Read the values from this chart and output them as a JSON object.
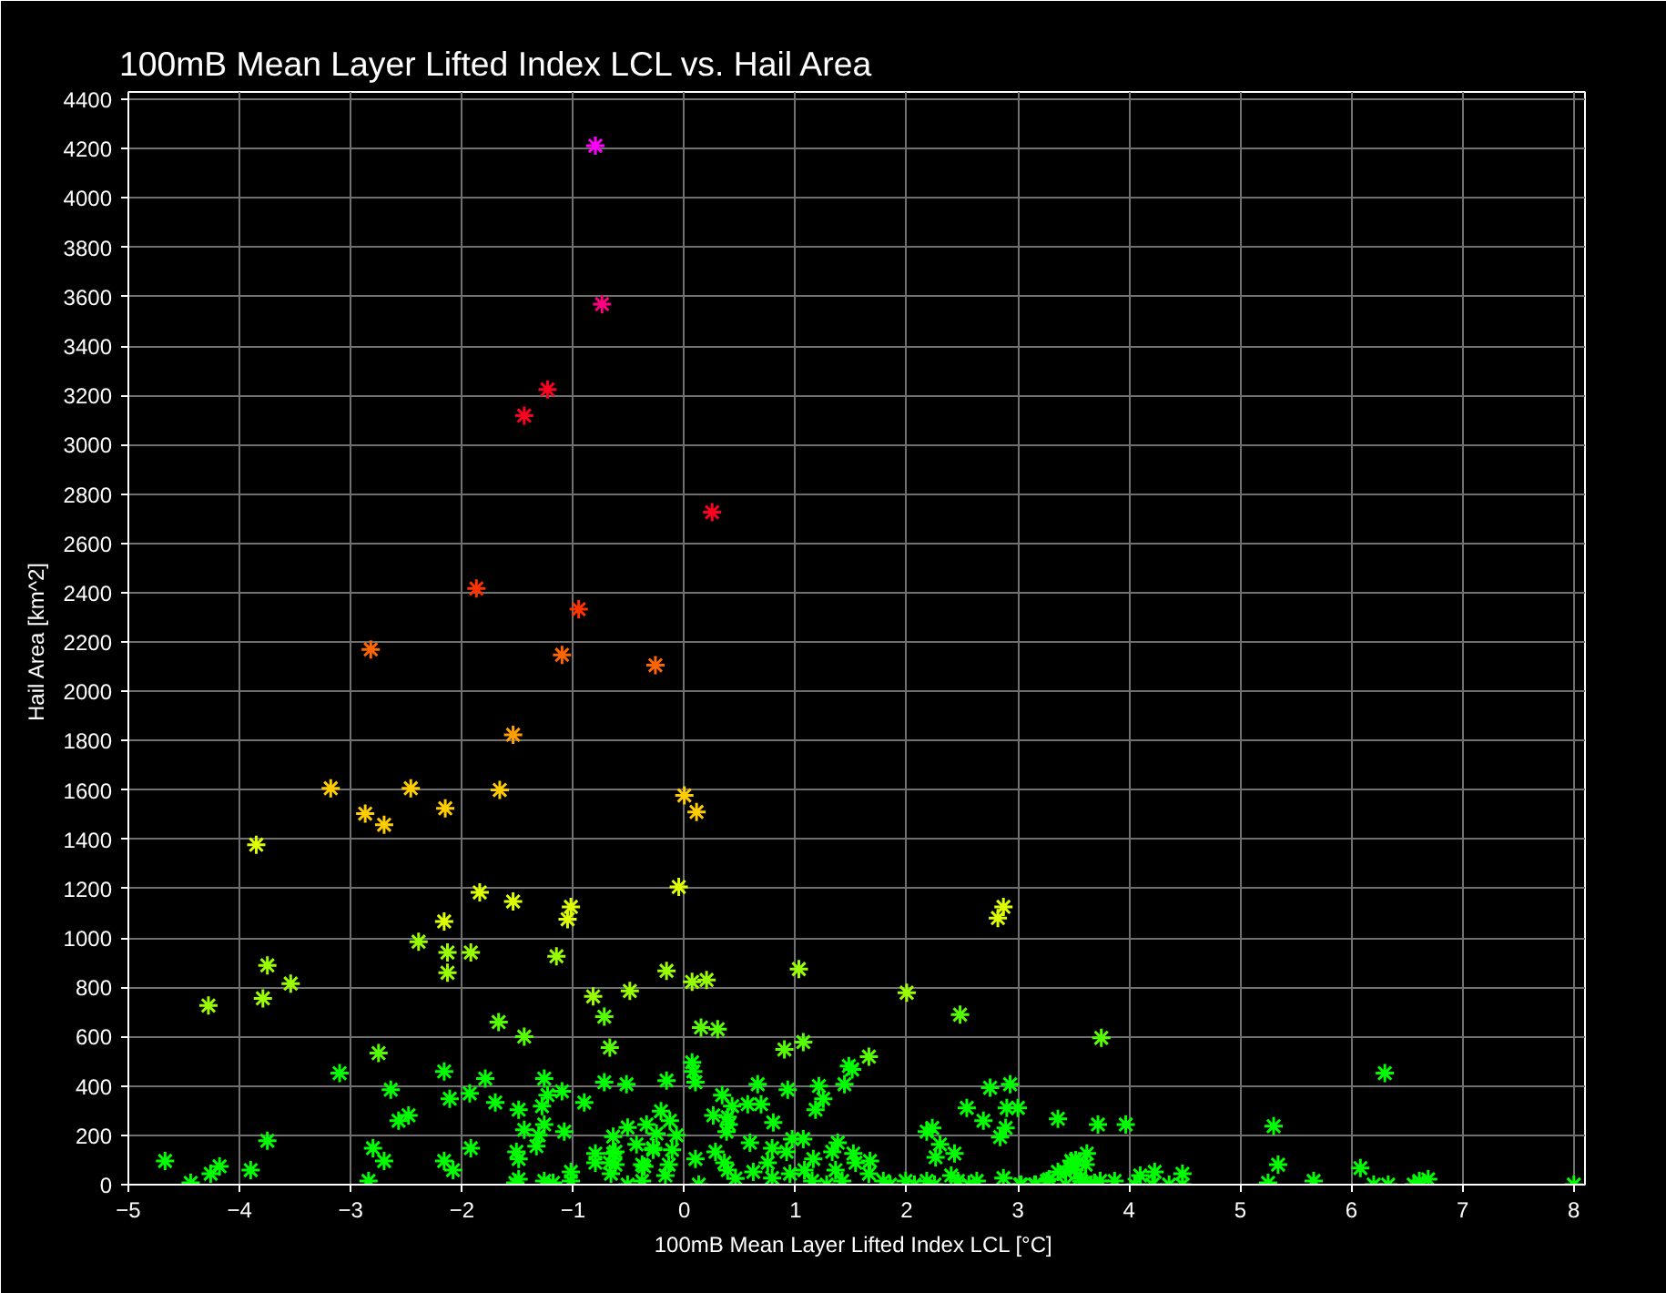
{
  "chart_data": {
    "type": "scatter",
    "title": "100mB Mean Layer Lifted Index LCL vs. Hail Area",
    "xlabel": "100mB Mean Layer Lifted Index LCL  [°C]",
    "ylabel": "Hail Area  [km^2]",
    "xlim": [
      -5,
      8.1
    ],
    "ylim": [
      0,
      4430
    ],
    "xticks": [
      -5,
      -4,
      -3,
      -2,
      -1,
      0,
      1,
      2,
      3,
      4,
      5,
      6,
      7,
      8
    ],
    "yticks": [
      0,
      200,
      400,
      600,
      800,
      1000,
      1200,
      1400,
      1600,
      1800,
      2000,
      2200,
      2400,
      2600,
      2800,
      3000,
      3200,
      3400,
      3600,
      3800,
      4000,
      4200,
      4400
    ],
    "grid": true,
    "marker": "cross",
    "series": [
      {
        "color": "#ff00ff",
        "x": [
          -0.8
        ],
        "values": [
          4212
        ]
      },
      {
        "color": "#ff0080",
        "x": [
          -0.74
        ],
        "values": [
          3570
        ]
      },
      {
        "color": "#ff0020",
        "x": [
          -1.23,
          -1.44,
          0.25
        ],
        "values": [
          3224,
          3118,
          2726
        ]
      },
      {
        "color": "#ff3300",
        "x": [
          -1.87,
          -0.95
        ],
        "values": [
          2417,
          2333
        ]
      },
      {
        "color": "#ff6600",
        "x": [
          -2.82,
          -1.1,
          -0.26
        ],
        "values": [
          2170,
          2148,
          2106
        ]
      },
      {
        "color": "#ffa000",
        "x": [
          -1.54
        ],
        "values": [
          1824
        ]
      },
      {
        "color": "#ffcc00",
        "x": [
          -3.18,
          -2.46,
          -1.66,
          -2.87,
          -2.7,
          -2.15,
          0.0,
          0.11
        ],
        "values": [
          1607,
          1607,
          1600,
          1504,
          1459,
          1526,
          1578,
          1511
        ]
      },
      {
        "color": "#ddff00",
        "x": [
          -3.85,
          -1.84,
          -1.54,
          -1.02,
          -1.05,
          -2.16,
          -0.05,
          2.87,
          2.82
        ],
        "values": [
          1378,
          1185,
          1148,
          1126,
          1076,
          1067,
          1207,
          1126,
          1081
        ]
      },
      {
        "color": "#99ff00",
        "x": [
          -2.39,
          -2.13,
          -1.92,
          -1.15,
          -2.13,
          -3.75,
          -3.54,
          -3.79,
          -4.28,
          -0.82,
          -0.49,
          -0.16,
          1.03,
          0.07,
          0.2,
          2.0
        ],
        "values": [
          985,
          941,
          941,
          926,
          859,
          889,
          815,
          755,
          726,
          763,
          785,
          867,
          874,
          822,
          830,
          778
        ]
      },
      {
        "color": "#55ff00",
        "x": [
          -1.67,
          -1.44,
          -0.72,
          -0.67,
          -2.75,
          2.48,
          0.15,
          0.3,
          0.9,
          1.07,
          1.66,
          3.75
        ],
        "values": [
          659,
          600,
          681,
          556,
          533,
          689,
          637,
          630,
          548,
          578,
          519,
          595
        ]
      },
      {
        "color": "#00ff00",
        "x": [
          -3.1,
          -2.16,
          -1.79,
          -1.26,
          -0.72,
          -0.52,
          -2.64,
          -1.93,
          -2.11,
          -1.1,
          -1.23,
          -1.7,
          -1.49,
          -1.28,
          -0.9,
          -2.48,
          -2.57,
          -1.44,
          -1.26,
          -1.31,
          -1.08,
          -3.75,
          -4.67,
          -4.18,
          -4.26,
          -4.44,
          -3.9,
          -2.8,
          -2.7,
          -2.84,
          -2.16,
          -2.08,
          -1.92,
          -1.51,
          -1.49,
          -1.52,
          -1.49,
          -1.33,
          -1.26,
          -1.18,
          -1.02,
          -1.02,
          -0.8,
          -0.8,
          -0.67,
          -0.62,
          -0.51,
          -0.34,
          -0.43,
          -0.28,
          -0.25,
          -0.64,
          -0.66,
          -0.51,
          -0.36,
          -0.21,
          1.48,
          1.51,
          0.07,
          0.08,
          0.1,
          -0.16,
          0.66,
          0.93,
          1.21,
          1.44,
          1.25,
          1.18,
          0.34,
          0.43,
          0.57,
          0.69,
          0.26,
          0.39,
          0.4,
          0.8,
          0.38,
          -0.13,
          -0.07,
          -0.28,
          -0.11,
          0.1,
          0.28,
          0.59,
          0.79,
          0.92,
          0.97,
          1.07,
          1.16,
          1.33,
          1.38,
          1.52,
          1.67,
          2.18,
          2.23,
          2.3,
          2.26,
          2.43,
          2.54,
          2.69,
          2.75,
          2.93,
          3.0,
          2.9,
          2.89,
          2.84,
          3.36,
          3.72,
          3.49,
          3.62,
          3.61,
          3.43,
          -0.64,
          -0.62,
          -0.38,
          -0.38,
          -0.17,
          -0.14,
          0.13,
          0.36,
          0.39,
          0.46,
          0.62,
          0.75,
          0.79,
          0.95,
          1.08,
          1.15,
          1.28,
          1.36,
          1.42,
          1.54,
          1.66,
          1.79,
          1.85,
          1.99,
          2.07,
          2.18,
          2.25,
          2.4,
          2.46,
          2.56,
          2.63,
          2.87,
          3.02,
          3.16,
          3.26,
          3.36,
          3.43,
          3.52,
          3.56,
          3.66,
          3.74,
          6.3,
          3.97,
          5.3,
          5.34,
          6.08,
          3.48,
          3.51,
          4.23,
          4.48,
          4.1,
          3.03,
          3.15,
          3.28,
          3.57,
          3.69,
          3.87,
          4.05,
          4.21,
          4.36,
          4.48,
          5.25,
          5.66,
          6.2,
          6.33,
          6.56,
          6.69,
          6.61,
          8.0
        ],
        "values": [
          452,
          459,
          430,
          430,
          415,
          407,
          385,
          370,
          348,
          378,
          363,
          333,
          304,
          318,
          333,
          281,
          259,
          222,
          244,
          200,
          215,
          178,
          96,
          74,
          44,
          7,
          59,
          148,
          96,
          15,
          96,
          59,
          148,
          133,
          104,
          7,
          22,
          156,
          15,
          7,
          52,
          15,
          126,
          89,
          89,
          133,
          232,
          244,
          163,
          141,
          207,
          195,
          44,
          0,
          74,
          298,
          481,
          467,
          496,
          459,
          415,
          422,
          407,
          385,
          400,
          407,
          348,
          304,
          363,
          318,
          326,
          326,
          281,
          274,
          244,
          252,
          215,
          259,
          200,
          148,
          141,
          104,
          133,
          170,
          148,
          133,
          185,
          185,
          104,
          133,
          170,
          126,
          96,
          215,
          230,
          163,
          111,
          126,
          311,
          259,
          393,
          407,
          311,
          311,
          230,
          193,
          267,
          244,
          89,
          126,
          81,
          52,
          126,
          81,
          81,
          15,
          37,
          81,
          0,
          89,
          59,
          25,
          52,
          89,
          27,
          44,
          59,
          15,
          0,
          59,
          15,
          89,
          44,
          15,
          0,
          15,
          0,
          15,
          0,
          37,
          15,
          0,
          15,
          27,
          0,
          0,
          15,
          52,
          0,
          100,
          27,
          0,
          15,
          452,
          244,
          237,
          81,
          67,
          96,
          59,
          52,
          44,
          37,
          0,
          0,
          22,
          15,
          7,
          15,
          0,
          0,
          0,
          0,
          7,
          15,
          0,
          0,
          0,
          22,
          15,
          0
        ]
      }
    ]
  }
}
